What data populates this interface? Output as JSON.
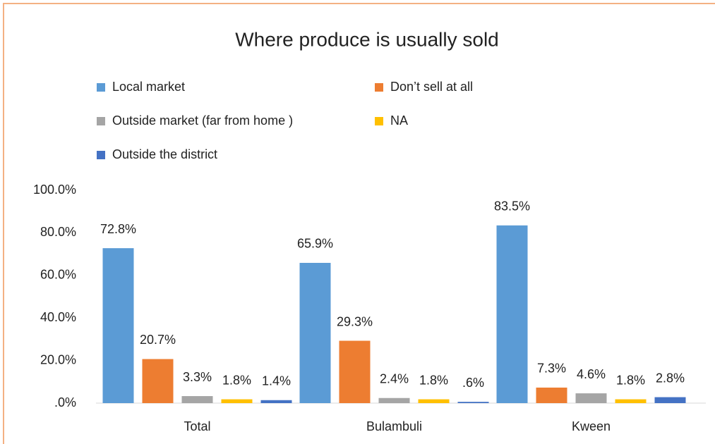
{
  "chart_data": {
    "type": "bar",
    "title": "Where produce is usually sold",
    "categories": [
      "Total",
      "Bulambuli",
      "Kween"
    ],
    "series": [
      {
        "name": "Local market",
        "color": "#5b9bd5",
        "values": [
          72.8,
          65.9,
          83.5
        ],
        "value_labels": [
          "72.8%",
          "65.9%",
          "83.5%"
        ]
      },
      {
        "name": "Don’t sell at all",
        "color": "#ed7d31",
        "values": [
          20.7,
          29.3,
          7.3
        ],
        "value_labels": [
          "20.7%",
          "29.3%",
          "7.3%"
        ]
      },
      {
        "name": "Outside market (far from home )",
        "color": "#a5a5a5",
        "values": [
          3.3,
          2.4,
          4.6
        ],
        "value_labels": [
          "3.3%",
          "2.4%",
          "4.6%"
        ]
      },
      {
        "name": "NA",
        "color": "#ffc000",
        "values": [
          1.8,
          1.8,
          1.8
        ],
        "value_labels": [
          "1.8%",
          "1.8%",
          "1.8%"
        ]
      },
      {
        "name": "Outside the district",
        "color": "#4472c4",
        "values": [
          1.4,
          0.6,
          2.8
        ],
        "value_labels": [
          "1.4%",
          ".6%",
          "2.8%"
        ]
      }
    ],
    "ylim": [
      0,
      100
    ],
    "yticks": [
      {
        "value": 0,
        "label": ".0%"
      },
      {
        "value": 20,
        "label": "20.0%"
      },
      {
        "value": 40,
        "label": "40.0%"
      },
      {
        "value": 60,
        "label": "60.0%"
      },
      {
        "value": 80,
        "label": "80.0%"
      },
      {
        "value": 100,
        "label": "100.0%"
      }
    ],
    "grid": false,
    "legend": "top"
  }
}
